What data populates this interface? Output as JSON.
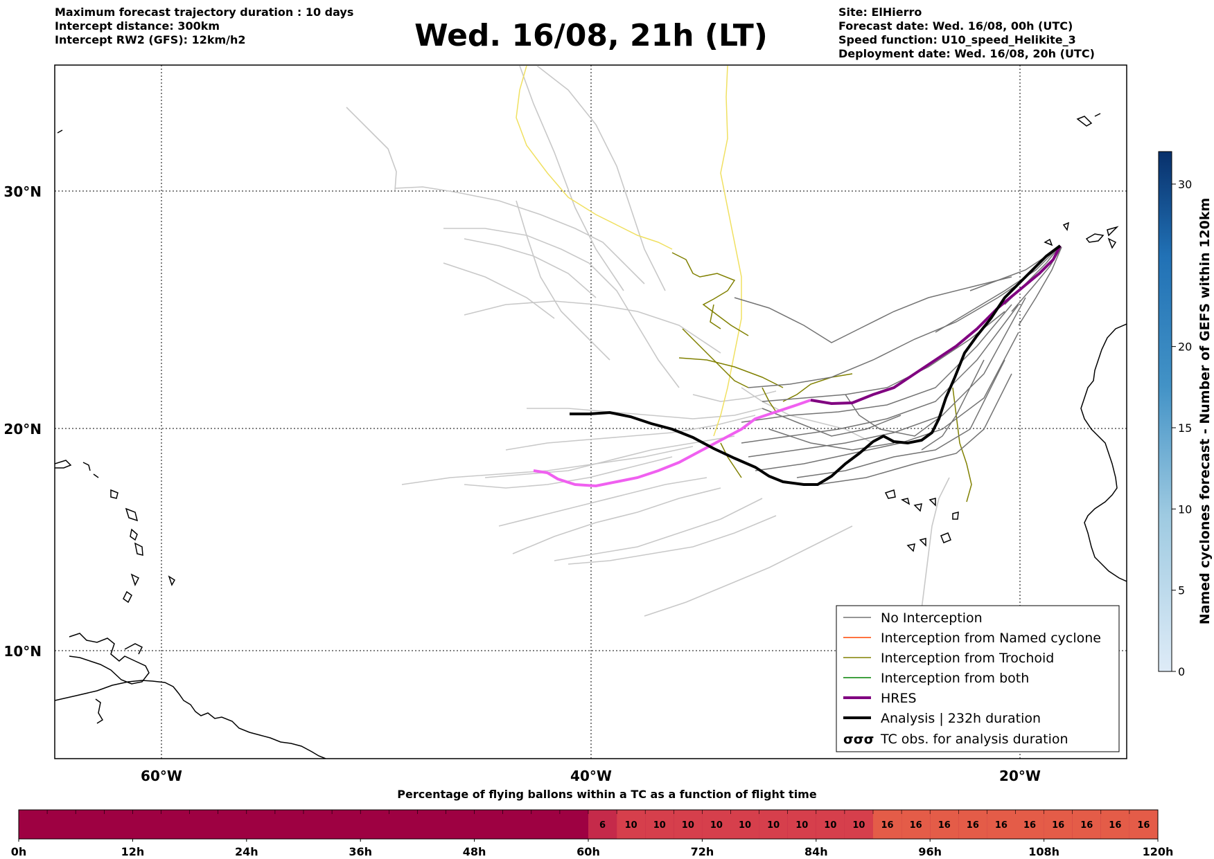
{
  "header": {
    "left": [
      "Maximum forecast trajectory duration : 10 days",
      "Intercept distance: 300km",
      "Intercept RW2 (GFS):  12km/h2"
    ],
    "title": "Wed. 16/08, 21h (LT)",
    "right": [
      "Site: ElHierro",
      "Forecast date: Wed. 16/08, 00h (UTC)",
      "Speed function: U10_speed_Helikite_3",
      "Deployment date: Wed. 16/08, 20h (UTC)"
    ]
  },
  "map": {
    "lat_labels": [
      "30°N",
      "20°N",
      "10°N"
    ],
    "lon_labels": [
      "60°W",
      "40°W",
      "20°W"
    ],
    "colors": {
      "no_interception": "#737373",
      "ensemble_light": "#c8c8c8",
      "named_cyclone": "#ff4500",
      "trochoid": "#808000",
      "both": "#008000",
      "hres": "#800080",
      "hres_light": "#f060f0",
      "analysis": "#000000",
      "yellow_track": "#f0e060"
    }
  },
  "legend": {
    "items": [
      {
        "label": "No Interception",
        "icon": "thin-gray-line"
      },
      {
        "label": "Interception from Named cyclone",
        "icon": "thin-orange-line"
      },
      {
        "label": "Interception from Trochoid",
        "icon": "thin-olive-line"
      },
      {
        "label": "Interception from both",
        "icon": "thin-green-line"
      },
      {
        "label": "HRES",
        "icon": "thick-purple-line"
      },
      {
        "label": "Analysis | 232h duration",
        "icon": "thick-black-line"
      },
      {
        "label": "TC obs. for analysis duration",
        "icon": "cyclone-symbols"
      }
    ],
    "cyclone_glyph": "σσσ"
  },
  "colorbar": {
    "label": "Named cyclones forecast - Number of GEFS within 120km",
    "min": 0,
    "max": 32,
    "ticks": [
      "0",
      "5",
      "10",
      "15",
      "20",
      "30"
    ],
    "tick_values": [
      0,
      5,
      10,
      15,
      20,
      30
    ]
  },
  "bottom_bar": {
    "title": "Percentage of flying ballons within a TC as a function of flight time",
    "tick_labels": [
      "0h",
      "12h",
      "24h",
      "36h",
      "48h",
      "60h",
      "72h",
      "84h",
      "96h",
      "108h",
      "120h"
    ],
    "segment_values": [
      "6",
      "10",
      "10",
      "10",
      "10",
      "10",
      "10",
      "10",
      "10",
      "10",
      "16",
      "16",
      "16",
      "16",
      "16",
      "16",
      "16",
      "16",
      "16",
      "16"
    ],
    "segment_start_hour": 60,
    "segment_hours": 3
  }
}
